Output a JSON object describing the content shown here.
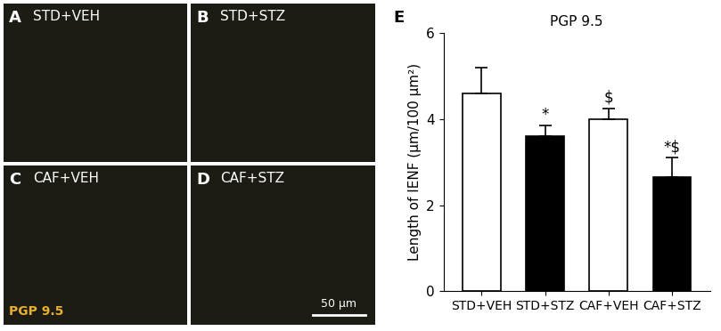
{
  "chart_data": {
    "type": "bar",
    "title": "PGP 9.5",
    "panel_label": "E",
    "y_label": "Length of IENF (μm/100 μm²)",
    "categories": [
      "STD+VEH",
      "STD+STZ",
      "CAF+VEH",
      "CAF+STZ"
    ],
    "values": [
      4.6,
      3.6,
      4.0,
      2.65
    ],
    "errors": [
      0.6,
      0.25,
      0.25,
      0.45
    ],
    "colors": [
      "#ffffff",
      "#000000",
      "#ffffff",
      "#000000"
    ],
    "annotations": [
      {
        "category": "STD+STZ",
        "text": "*"
      },
      {
        "category": "CAF+VEH",
        "text": "$"
      },
      {
        "category": "CAF+STZ",
        "text": "*$"
      }
    ],
    "ylim": [
      0,
      6
    ],
    "yticks": [
      0,
      2,
      4,
      6
    ],
    "grid": false
  },
  "images": [
    {
      "label": "A",
      "title": "STD+VEH"
    },
    {
      "label": "B",
      "title": "STD+STZ"
    },
    {
      "label": "C",
      "title": "CAF+VEH"
    },
    {
      "label": "D",
      "title": "CAF+STZ"
    }
  ],
  "stain_label": "PGP 9.5",
  "scale_bar": "50 μm"
}
